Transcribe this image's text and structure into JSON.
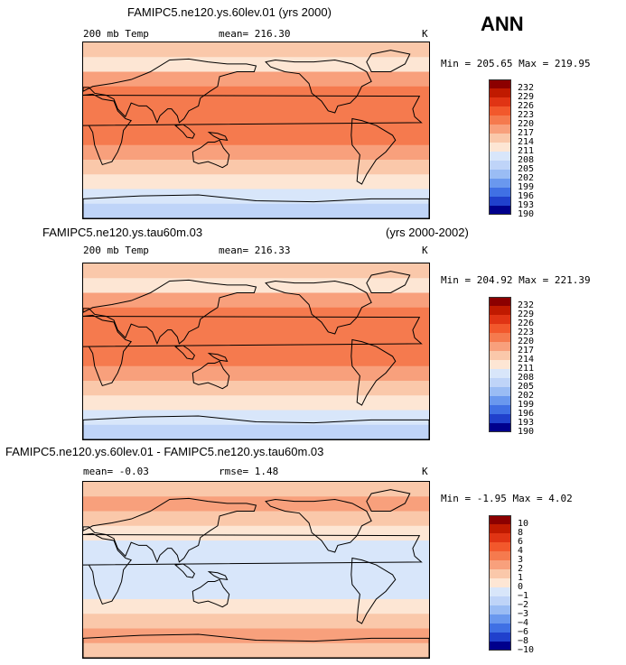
{
  "header": {
    "title1": "FAMIPC5.ne120.ys.60lev.01 (yrs 2000)",
    "season": "ANN",
    "title2_left": "FAMIPC5.ne120.ys.tau60m.03",
    "title2_right": "(yrs 2000-2002)",
    "title3": "FAMIPC5.ne120.ys.60lev.01 - FAMIPC5.ne120.ys.tau60m.03"
  },
  "chart_data": [
    {
      "type": "heatmap",
      "name": "panel-1",
      "variable": "200 mb Temp",
      "stat_label": "mean= 216.30",
      "units": "K",
      "range_label": "Min = 205.65 Max = 219.95",
      "min": 205.65,
      "max": 219.95,
      "mean": 216.3,
      "levels": [
        "232",
        "229",
        "226",
        "223",
        "220",
        "217",
        "214",
        "211",
        "208",
        "205",
        "202",
        "199",
        "196",
        "193",
        "190"
      ],
      "level_colors": [
        "#8c0000",
        "#c01a00",
        "#e03414",
        "#f2582c",
        "#f57a4e",
        "#f8a07c",
        "#fac8aa",
        "#fde6d4",
        "#d8e6fa",
        "#bfd4f8",
        "#9abcf4",
        "#6a98ee",
        "#4070e4",
        "#2040cc",
        "#00008c"
      ],
      "zonal_profile": [
        "214",
        "211",
        "217",
        "220",
        "220",
        "220",
        "220",
        "217",
        "214",
        "211",
        "208",
        "205"
      ]
    },
    {
      "type": "heatmap",
      "name": "panel-2",
      "variable": "200 mb Temp",
      "stat_label": "mean= 216.33",
      "units": "K",
      "range_label": "Min = 204.92 Max = 221.39",
      "min": 204.92,
      "max": 221.39,
      "mean": 216.33,
      "levels": [
        "232",
        "229",
        "226",
        "223",
        "220",
        "217",
        "214",
        "211",
        "208",
        "205",
        "202",
        "199",
        "196",
        "193",
        "190"
      ],
      "level_colors": [
        "#8c0000",
        "#c01a00",
        "#e03414",
        "#f2582c",
        "#f57a4e",
        "#f8a07c",
        "#fac8aa",
        "#fde6d4",
        "#d8e6fa",
        "#bfd4f8",
        "#9abcf4",
        "#6a98ee",
        "#4070e4",
        "#2040cc",
        "#00008c"
      ],
      "zonal_profile": [
        "214",
        "211",
        "217",
        "220",
        "220",
        "220",
        "220",
        "217",
        "214",
        "211",
        "208",
        "205"
      ]
    },
    {
      "type": "heatmap",
      "name": "panel-3",
      "variable": "",
      "stat_label": "mean=  -0.03",
      "stat2_label": "rmse=   1.48",
      "units": "K",
      "range_label": "Min =  -1.95 Max =   4.02",
      "min": -1.95,
      "max": 4.02,
      "mean": -0.03,
      "rmse": 1.48,
      "levels": [
        "10",
        "8",
        "6",
        "4",
        "3",
        "2",
        "1",
        "0",
        "−1",
        "−2",
        "−3",
        "−4",
        "−6",
        "−8",
        "−10"
      ],
      "level_colors": [
        "#8c0000",
        "#c01a00",
        "#e03414",
        "#f2582c",
        "#f57a4e",
        "#f8a07c",
        "#fac8aa",
        "#fde6d4",
        "#d8e6fa",
        "#bfd4f8",
        "#9abcf4",
        "#6a98ee",
        "#4070e4",
        "#2040cc",
        "#00008c"
      ],
      "zonal_profile": [
        "1",
        "2",
        "1",
        "0",
        "−1",
        "−1",
        "−1",
        "−1",
        "0",
        "1",
        "2",
        "1"
      ]
    }
  ]
}
